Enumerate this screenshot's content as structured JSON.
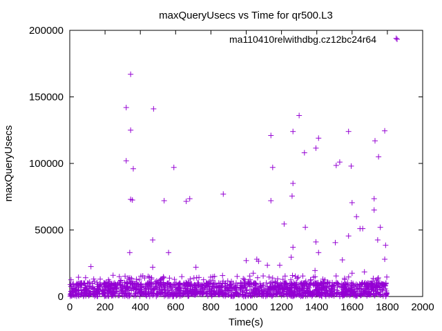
{
  "chart_data": {
    "type": "scatter",
    "title": "maxQueryUsecs vs Time for qr500.L3",
    "xlabel": "Time(s)",
    "ylabel": "maxQueryUsecs",
    "xlim": [
      0,
      2000
    ],
    "ylim": [
      0,
      200000
    ],
    "xticks": [
      "0",
      "200",
      "400",
      "600",
      "800",
      "1000",
      "1200",
      "1400",
      "1600",
      "1800",
      "2000"
    ],
    "yticks": [
      "0",
      "50000",
      "100000",
      "150000",
      "200000"
    ],
    "grid": false,
    "legend_position": "top-right",
    "marker": "plus",
    "series_color": "#9400d3",
    "series": [
      {
        "name": "ma110410relwithdbg.cz12bc24r64",
        "points": [
          [
            345,
            167000
          ],
          [
            320,
            142000
          ],
          [
            475,
            141000
          ],
          [
            345,
            125000
          ],
          [
            320,
            102000
          ],
          [
            360,
            96000
          ],
          [
            590,
            97000
          ],
          [
            345,
            73000
          ],
          [
            355,
            72500
          ],
          [
            535,
            72000
          ],
          [
            660,
            71500
          ],
          [
            680,
            73500
          ],
          [
            870,
            77000
          ],
          [
            470,
            42500
          ],
          [
            120,
            22500
          ],
          [
            340,
            33000
          ],
          [
            560,
            33000
          ],
          [
            470,
            22000
          ],
          [
            715,
            22000
          ],
          [
            1140,
            121000
          ],
          [
            1265,
            124000
          ],
          [
            1300,
            136000
          ],
          [
            1150,
            97000
          ],
          [
            1140,
            72000
          ],
          [
            1265,
            85000
          ],
          [
            1260,
            75500
          ],
          [
            1330,
            108000
          ],
          [
            1395,
            111500
          ],
          [
            1410,
            119000
          ],
          [
            1510,
            98500
          ],
          [
            1530,
            101000
          ],
          [
            1580,
            124000
          ],
          [
            1595,
            98000
          ],
          [
            1600,
            70500
          ],
          [
            1730,
            117000
          ],
          [
            1750,
            105000
          ],
          [
            1785,
            124500
          ],
          [
            1725,
            73500
          ],
          [
            1725,
            65000
          ],
          [
            1645,
            51000
          ],
          [
            1660,
            51000
          ],
          [
            1760,
            52000
          ],
          [
            1215,
            54500
          ],
          [
            1335,
            52000
          ],
          [
            1395,
            41000
          ],
          [
            1505,
            40500
          ],
          [
            1580,
            45500
          ],
          [
            1625,
            60000
          ],
          [
            1745,
            42500
          ],
          [
            1790,
            38500
          ],
          [
            1265,
            37000
          ],
          [
            1255,
            29500
          ],
          [
            1410,
            33000
          ],
          [
            1545,
            27500
          ],
          [
            1785,
            28000
          ],
          [
            1000,
            27000
          ],
          [
            1060,
            28000
          ],
          [
            1070,
            26500
          ],
          [
            1120,
            23500
          ],
          [
            1190,
            23500
          ],
          [
            1040,
            17500
          ],
          [
            1390,
            19500
          ],
          [
            1670,
            18500
          ],
          [
            1600,
            17500
          ],
          [
            1850,
            194000
          ]
        ]
      }
    ]
  }
}
